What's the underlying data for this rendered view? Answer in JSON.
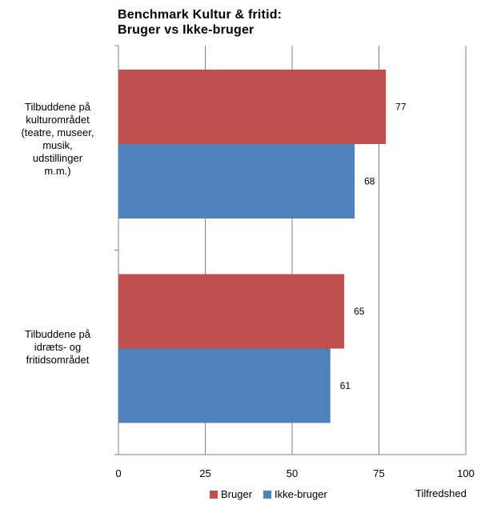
{
  "chart_data": {
    "type": "bar",
    "orientation": "horizontal",
    "title_lines": [
      "Benchmark Kultur & fritid:",
      "Bruger  vs  Ikke-bruger"
    ],
    "categories": [
      [
        "Tilbuddene på",
        "kulturområdet",
        "(teatre, museer,",
        "musik,",
        "udstillinger",
        "m.m.)"
      ],
      [
        "Tilbuddene på",
        "idræts- og",
        "fritidsområdet"
      ]
    ],
    "series": [
      {
        "name": "Bruger",
        "color": "#c0504d",
        "values": [
          77,
          65
        ]
      },
      {
        "name": "Ikke-bruger",
        "color": "#4f81bd",
        "values": [
          68,
          61
        ]
      }
    ],
    "xlim": [
      0,
      100
    ],
    "xticks": [
      "0",
      "25",
      "50",
      "75",
      "100"
    ],
    "xlabel": "Tilfredshed",
    "grid": true,
    "legend_position": "bottom"
  }
}
